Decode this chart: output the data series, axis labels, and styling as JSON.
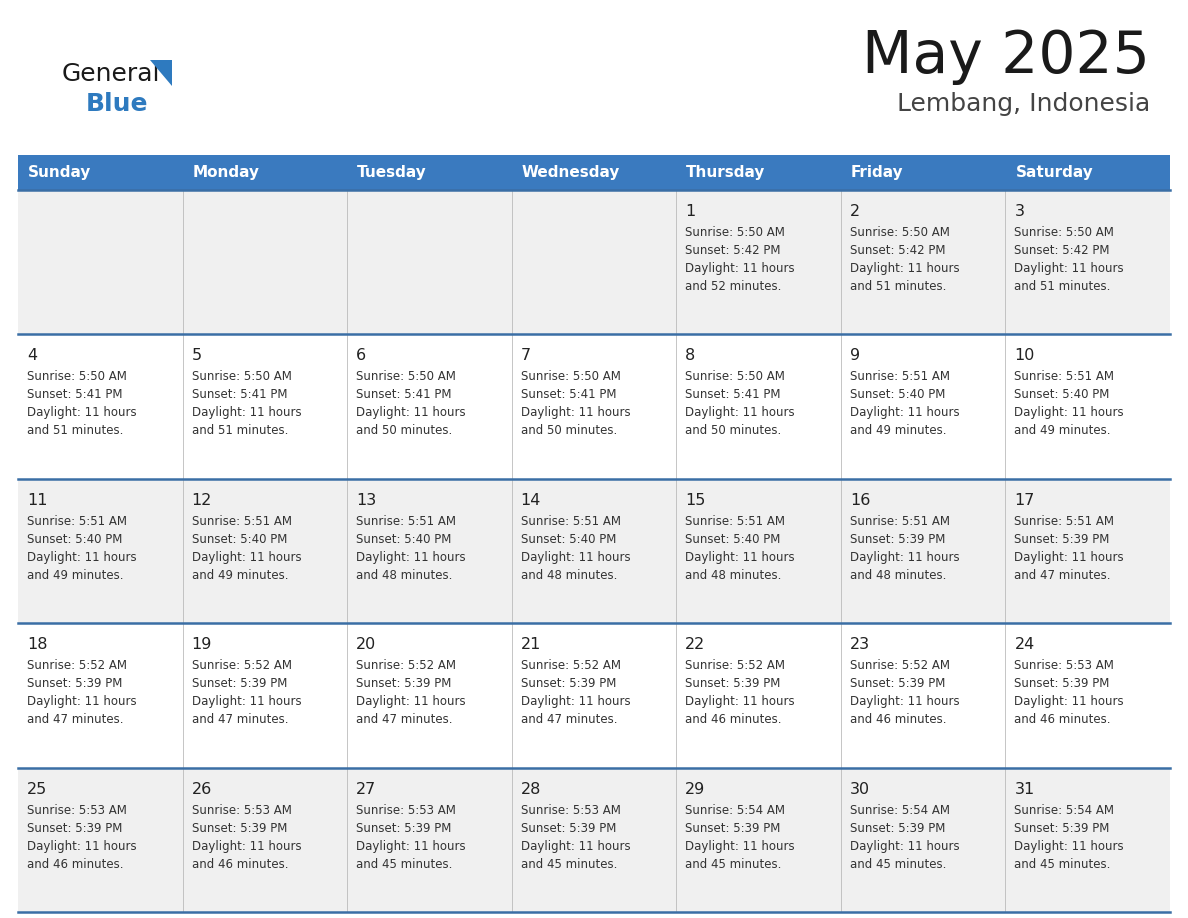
{
  "title": "May 2025",
  "subtitle": "Lembang, Indonesia",
  "days_of_week": [
    "Sunday",
    "Monday",
    "Tuesday",
    "Wednesday",
    "Thursday",
    "Friday",
    "Saturday"
  ],
  "header_bg": "#3a7abf",
  "header_text": "#ffffff",
  "row_bg_odd": "#f0f0f0",
  "row_bg_even": "#ffffff",
  "cell_text_color": "#333333",
  "day_num_color": "#222222",
  "border_color": "#3a6ea5",
  "title_color": "#1a1a1a",
  "subtitle_color": "#444444",
  "logo_general_color": "#1a1a1a",
  "logo_blue_color": "#2e7abf",
  "calendar": [
    [
      null,
      null,
      null,
      null,
      {
        "day": 1,
        "sunrise": "5:50 AM",
        "sunset": "5:42 PM",
        "daylight": "11 hours and 52 minutes"
      },
      {
        "day": 2,
        "sunrise": "5:50 AM",
        "sunset": "5:42 PM",
        "daylight": "11 hours and 51 minutes"
      },
      {
        "day": 3,
        "sunrise": "5:50 AM",
        "sunset": "5:42 PM",
        "daylight": "11 hours and 51 minutes"
      }
    ],
    [
      {
        "day": 4,
        "sunrise": "5:50 AM",
        "sunset": "5:41 PM",
        "daylight": "11 hours and 51 minutes"
      },
      {
        "day": 5,
        "sunrise": "5:50 AM",
        "sunset": "5:41 PM",
        "daylight": "11 hours and 51 minutes"
      },
      {
        "day": 6,
        "sunrise": "5:50 AM",
        "sunset": "5:41 PM",
        "daylight": "11 hours and 50 minutes"
      },
      {
        "day": 7,
        "sunrise": "5:50 AM",
        "sunset": "5:41 PM",
        "daylight": "11 hours and 50 minutes"
      },
      {
        "day": 8,
        "sunrise": "5:50 AM",
        "sunset": "5:41 PM",
        "daylight": "11 hours and 50 minutes"
      },
      {
        "day": 9,
        "sunrise": "5:51 AM",
        "sunset": "5:40 PM",
        "daylight": "11 hours and 49 minutes"
      },
      {
        "day": 10,
        "sunrise": "5:51 AM",
        "sunset": "5:40 PM",
        "daylight": "11 hours and 49 minutes"
      }
    ],
    [
      {
        "day": 11,
        "sunrise": "5:51 AM",
        "sunset": "5:40 PM",
        "daylight": "11 hours and 49 minutes"
      },
      {
        "day": 12,
        "sunrise": "5:51 AM",
        "sunset": "5:40 PM",
        "daylight": "11 hours and 49 minutes"
      },
      {
        "day": 13,
        "sunrise": "5:51 AM",
        "sunset": "5:40 PM",
        "daylight": "11 hours and 48 minutes"
      },
      {
        "day": 14,
        "sunrise": "5:51 AM",
        "sunset": "5:40 PM",
        "daylight": "11 hours and 48 minutes"
      },
      {
        "day": 15,
        "sunrise": "5:51 AM",
        "sunset": "5:40 PM",
        "daylight": "11 hours and 48 minutes"
      },
      {
        "day": 16,
        "sunrise": "5:51 AM",
        "sunset": "5:39 PM",
        "daylight": "11 hours and 48 minutes"
      },
      {
        "day": 17,
        "sunrise": "5:51 AM",
        "sunset": "5:39 PM",
        "daylight": "11 hours and 47 minutes"
      }
    ],
    [
      {
        "day": 18,
        "sunrise": "5:52 AM",
        "sunset": "5:39 PM",
        "daylight": "11 hours and 47 minutes"
      },
      {
        "day": 19,
        "sunrise": "5:52 AM",
        "sunset": "5:39 PM",
        "daylight": "11 hours and 47 minutes"
      },
      {
        "day": 20,
        "sunrise": "5:52 AM",
        "sunset": "5:39 PM",
        "daylight": "11 hours and 47 minutes"
      },
      {
        "day": 21,
        "sunrise": "5:52 AM",
        "sunset": "5:39 PM",
        "daylight": "11 hours and 47 minutes"
      },
      {
        "day": 22,
        "sunrise": "5:52 AM",
        "sunset": "5:39 PM",
        "daylight": "11 hours and 46 minutes"
      },
      {
        "day": 23,
        "sunrise": "5:52 AM",
        "sunset": "5:39 PM",
        "daylight": "11 hours and 46 minutes"
      },
      {
        "day": 24,
        "sunrise": "5:53 AM",
        "sunset": "5:39 PM",
        "daylight": "11 hours and 46 minutes"
      }
    ],
    [
      {
        "day": 25,
        "sunrise": "5:53 AM",
        "sunset": "5:39 PM",
        "daylight": "11 hours and 46 minutes"
      },
      {
        "day": 26,
        "sunrise": "5:53 AM",
        "sunset": "5:39 PM",
        "daylight": "11 hours and 46 minutes"
      },
      {
        "day": 27,
        "sunrise": "5:53 AM",
        "sunset": "5:39 PM",
        "daylight": "11 hours and 45 minutes"
      },
      {
        "day": 28,
        "sunrise": "5:53 AM",
        "sunset": "5:39 PM",
        "daylight": "11 hours and 45 minutes"
      },
      {
        "day": 29,
        "sunrise": "5:54 AM",
        "sunset": "5:39 PM",
        "daylight": "11 hours and 45 minutes"
      },
      {
        "day": 30,
        "sunrise": "5:54 AM",
        "sunset": "5:39 PM",
        "daylight": "11 hours and 45 minutes"
      },
      {
        "day": 31,
        "sunrise": "5:54 AM",
        "sunset": "5:39 PM",
        "daylight": "11 hours and 45 minutes"
      }
    ]
  ]
}
